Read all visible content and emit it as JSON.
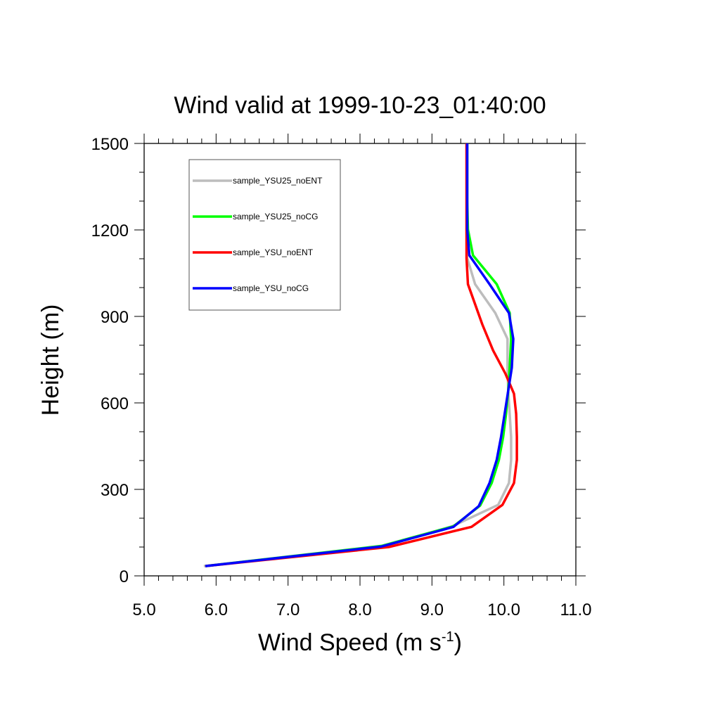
{
  "chart_data": {
    "type": "line",
    "title": "Wind valid at 1999-10-23_01:40:00",
    "xlabel": "Wind Speed (m s",
    "xlabel_sup": "-1",
    "xlabel_tail": ")",
    "ylabel": "Height (m)",
    "xlim": [
      5.0,
      11.0
    ],
    "ylim": [
      0,
      1500
    ],
    "x_ticks": [
      5.0,
      6.0,
      7.0,
      8.0,
      9.0,
      10.0,
      11.0
    ],
    "x_tick_labels": [
      "5.0",
      "6.0",
      "7.0",
      "8.0",
      "9.0",
      "10.0",
      "11.0"
    ],
    "y_ticks": [
      0,
      300,
      600,
      900,
      1200,
      1500
    ],
    "y_tick_labels": [
      "0",
      "300",
      "600",
      "900",
      "1200",
      "1500"
    ],
    "grid": false,
    "legend_position": "top-left",
    "series": [
      {
        "name": "sample_YSU25_noENT",
        "color": "#bdbdbd",
        "points": [
          [
            5.83,
            34
          ],
          [
            8.32,
            102
          ],
          [
            9.28,
            172
          ],
          [
            9.92,
            246
          ],
          [
            10.07,
            322
          ],
          [
            10.1,
            402
          ],
          [
            10.1,
            482
          ],
          [
            10.08,
            562
          ],
          [
            10.06,
            642
          ],
          [
            10.05,
            722
          ],
          [
            10.05,
            822
          ],
          [
            9.88,
            912
          ],
          [
            9.6,
            1012
          ],
          [
            9.49,
            1102
          ],
          [
            9.48,
            1202
          ],
          [
            9.48,
            1302
          ],
          [
            9.48,
            1402
          ],
          [
            9.48,
            1500
          ]
        ]
      },
      {
        "name": "sample_YSU25_noCG",
        "color": "#00ff00",
        "points": [
          [
            5.85,
            34
          ],
          [
            8.3,
            104
          ],
          [
            9.3,
            172
          ],
          [
            9.67,
            244
          ],
          [
            9.83,
            322
          ],
          [
            9.93,
            402
          ],
          [
            9.99,
            482
          ],
          [
            10.03,
            562
          ],
          [
            10.06,
            642
          ],
          [
            10.08,
            722
          ],
          [
            10.1,
            822
          ],
          [
            10.08,
            912
          ],
          [
            9.9,
            1012
          ],
          [
            9.57,
            1112
          ],
          [
            9.5,
            1202
          ],
          [
            9.49,
            1302
          ],
          [
            9.49,
            1402
          ],
          [
            9.49,
            1500
          ]
        ]
      },
      {
        "name": "sample_YSU_noENT",
        "color": "#ff0000",
        "points": [
          [
            5.85,
            34
          ],
          [
            8.4,
            100
          ],
          [
            9.55,
            170
          ],
          [
            9.98,
            246
          ],
          [
            10.14,
            322
          ],
          [
            10.18,
            402
          ],
          [
            10.18,
            482
          ],
          [
            10.17,
            562
          ],
          [
            10.14,
            632
          ],
          [
            10.02,
            702
          ],
          [
            9.85,
            782
          ],
          [
            9.7,
            872
          ],
          [
            9.5,
            1012
          ],
          [
            9.48,
            1102
          ],
          [
            9.48,
            1202
          ],
          [
            9.48,
            1302
          ],
          [
            9.48,
            1402
          ],
          [
            9.48,
            1500
          ]
        ]
      },
      {
        "name": "sample_YSU_noCG",
        "color": "#0000ff",
        "points": [
          [
            5.85,
            34
          ],
          [
            8.3,
            102
          ],
          [
            9.3,
            170
          ],
          [
            9.65,
            242
          ],
          [
            9.8,
            322
          ],
          [
            9.9,
            402
          ],
          [
            9.96,
            482
          ],
          [
            10.01,
            562
          ],
          [
            10.06,
            642
          ],
          [
            10.11,
            722
          ],
          [
            10.13,
            822
          ],
          [
            10.07,
            912
          ],
          [
            9.8,
            1012
          ],
          [
            9.52,
            1112
          ],
          [
            9.49,
            1202
          ],
          [
            9.49,
            1302
          ],
          [
            9.49,
            1402
          ],
          [
            9.49,
            1500
          ]
        ]
      }
    ]
  }
}
